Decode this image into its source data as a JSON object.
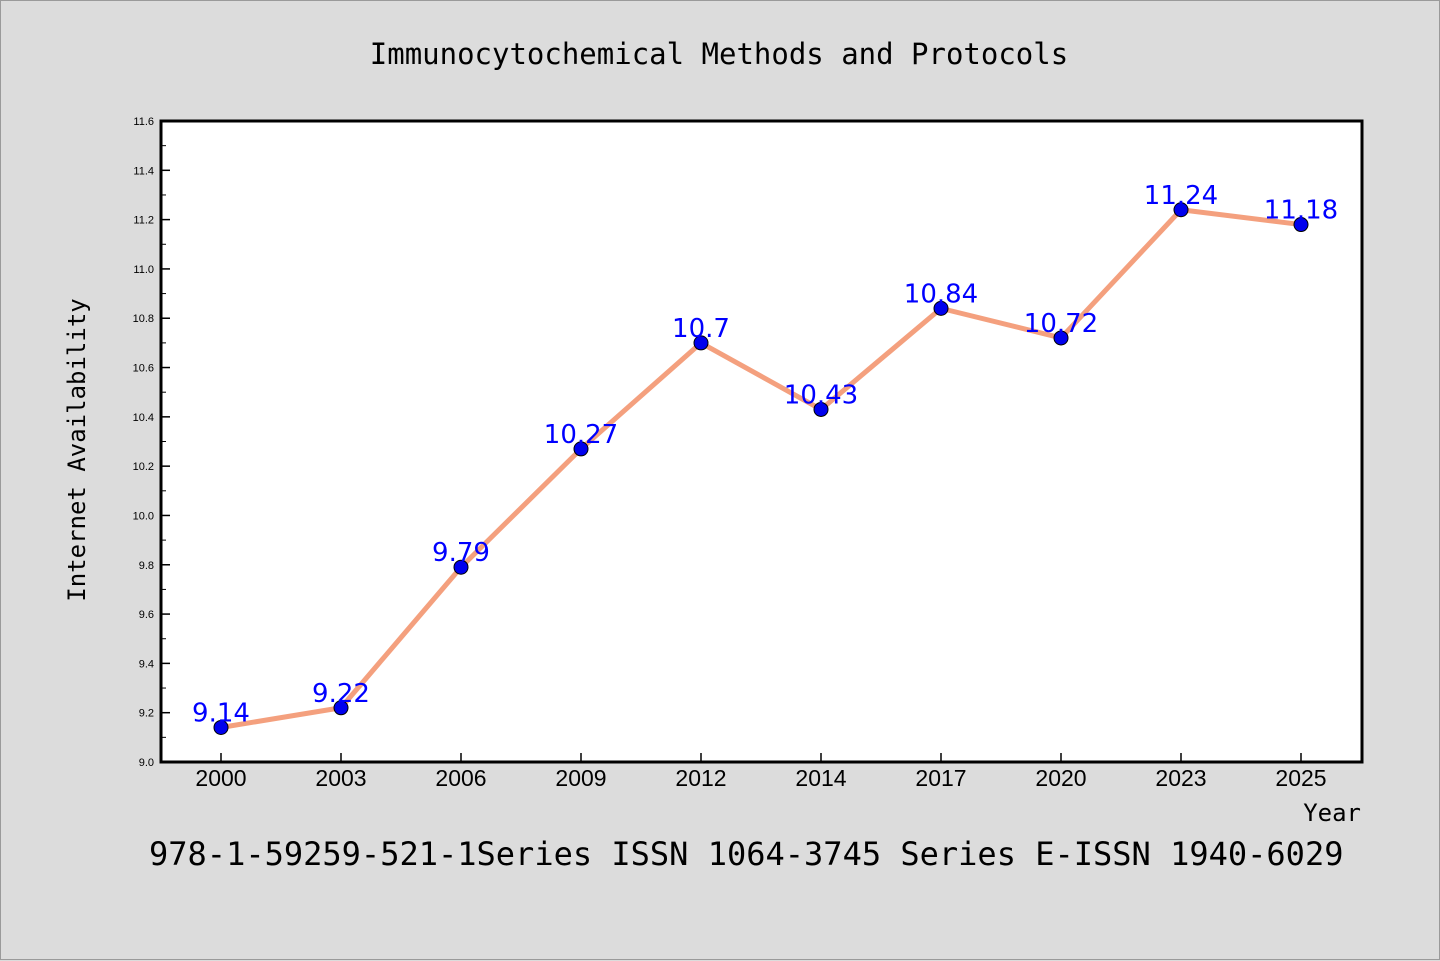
{
  "chart_data": {
    "type": "line",
    "title": "Immunocytochemical Methods and Protocols",
    "xlabel": "Year",
    "ylabel": "Internet Availability",
    "categories": [
      "2000",
      "2003",
      "2006",
      "2009",
      "2012",
      "2014",
      "2017",
      "2020",
      "2023",
      "2025"
    ],
    "series": [
      {
        "values": [
          9.14,
          9.22,
          9.79,
          10.27,
          10.7,
          10.43,
          10.84,
          10.72,
          11.24,
          11.18
        ],
        "labels": [
          "9.14",
          "9.22",
          "9.79",
          "10.27",
          "10.7",
          "10.43",
          "10.84",
          "10.72",
          "11.24",
          "11.18"
        ],
        "line_color": "#f4a07e",
        "marker_color": "#0000ee",
        "label_color": "#0000ff"
      }
    ],
    "ylim": [
      9.0,
      11.6
    ],
    "yticks": [
      "9.0",
      "9.2",
      "9.4",
      "9.6",
      "9.8",
      "10.0",
      "10.2",
      "10.4",
      "10.6",
      "10.8",
      "11.0",
      "11.2",
      "11.4",
      "11.6"
    ],
    "grid": false,
    "legend": "none",
    "footer": "978-1-59259-521-1Series ISSN 1064-3745 Series E-ISSN 1940-6029",
    "background": "#dcdcdc",
    "plot_background": "#ffffff"
  }
}
